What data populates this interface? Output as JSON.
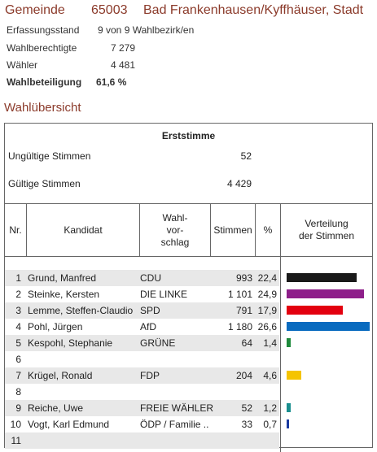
{
  "header": {
    "label": "Gemeinde",
    "code": "65003",
    "name": "Bad Frankenhausen/Kyffhäuser, Stadt"
  },
  "info": [
    {
      "label": "Erfassungsstand",
      "value": "9 von 9 Wahlbezirk/en"
    },
    {
      "label": "Wahlberechtigte",
      "value": "7 279"
    },
    {
      "label": "Wähler",
      "value": "4 481"
    },
    {
      "label": "Wahlbeteiligung",
      "value": "61,6 %"
    }
  ],
  "section_title": "Wahlübersicht",
  "erststimme": {
    "title": "Erststimme",
    "ungueltig_label": "Ungültige Stimmen",
    "ungueltig_value": "52",
    "gueltig_label": "Gültige Stimmen",
    "gueltig_value": "4 429"
  },
  "columns": {
    "nr": "Nr.",
    "kandidat": "Kandidat",
    "wahlvorschlag_1": "Wahl-",
    "wahlvorschlag_2": "vor-",
    "wahlvorschlag_3": "schlag",
    "stimmen": "Stimmen",
    "prozent": "%",
    "verteilung_1": "Verteilung",
    "verteilung_2": "der Stimmen"
  },
  "rows": [
    {
      "nr": "1",
      "kandidat": "Grund, Manfred",
      "partei": "CDU",
      "stimmen": "993",
      "prozent": "22,4",
      "share": 22.4,
      "color": "#1a1a1a"
    },
    {
      "nr": "2",
      "kandidat": "Steinke, Kersten",
      "partei": "DIE LINKE",
      "stimmen": "1 101",
      "prozent": "24,9",
      "share": 24.9,
      "color": "#8e1f8a"
    },
    {
      "nr": "3",
      "kandidat": "Lemme, Steffen-Claudio",
      "partei": "SPD",
      "stimmen": "791",
      "prozent": "17,9",
      "share": 17.9,
      "color": "#e3000f"
    },
    {
      "nr": "4",
      "kandidat": "Pohl, Jürgen",
      "partei": "AfD",
      "stimmen": "1 180",
      "prozent": "26,6",
      "share": 26.6,
      "color": "#0a6bbf"
    },
    {
      "nr": "5",
      "kandidat": "Kespohl, Stephanie",
      "partei": "GRÜNE",
      "stimmen": "64",
      "prozent": "1,4",
      "share": 1.4,
      "color": "#1e8a3c"
    },
    {
      "nr": "6",
      "kandidat": "",
      "partei": "",
      "stimmen": "",
      "prozent": "",
      "share": 0,
      "color": "#ffffff"
    },
    {
      "nr": "7",
      "kandidat": "Krügel, Ronald",
      "partei": "FDP",
      "stimmen": "204",
      "prozent": "4,6",
      "share": 4.6,
      "color": "#f5c400"
    },
    {
      "nr": "8",
      "kandidat": "",
      "partei": "",
      "stimmen": "",
      "prozent": "",
      "share": 0,
      "color": "#ffffff"
    },
    {
      "nr": "9",
      "kandidat": "Reiche, Uwe",
      "partei": "FREIE WÄHLER",
      "stimmen": "52",
      "prozent": "1,2",
      "share": 1.2,
      "color": "#1a8f8f"
    },
    {
      "nr": "10",
      "kandidat": "Vogt, Karl Edmund",
      "partei": "ÖDP / Familie ..",
      "stimmen": "33",
      "prozent": "0,7",
      "share": 0.7,
      "color": "#1a3aa0"
    },
    {
      "nr": "11",
      "kandidat": "",
      "partei": "",
      "stimmen": "",
      "prozent": "",
      "share": 0,
      "color": "#ffffff"
    }
  ]
}
